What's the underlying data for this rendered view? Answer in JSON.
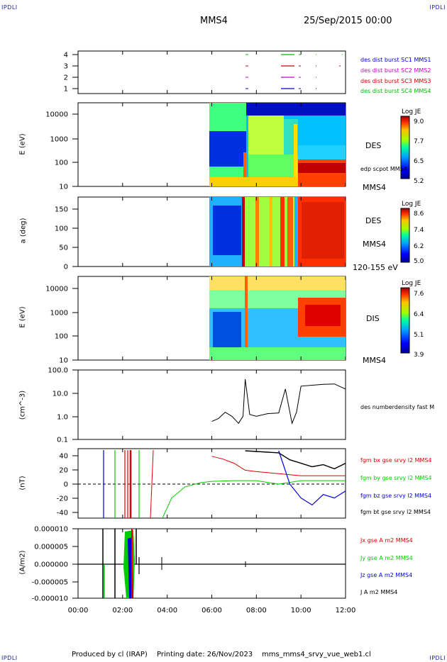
{
  "header": {
    "corner_tl": "IPDLI",
    "corner_tr": "IPDLI",
    "corner_bl": "IPDLI",
    "corner_br": "IPDLI",
    "spacecraft": "MMS4",
    "datetime": "25/Sep/2015 00:00"
  },
  "footer": {
    "produced": "Produced by cl (IRAP)",
    "printing": "Printing date: 26/Nov/2023",
    "file": "mms_mms4_srvy_vue_web1.cl"
  },
  "colors": {
    "mms1": "#0000cc",
    "mms2": "#cc00cc",
    "mms3": "#cc0000",
    "mms4": "#00bb00",
    "bx": "#dd0000",
    "by": "#00cc00",
    "bz": "#0000dd",
    "bt": "#000000"
  },
  "time_axis": [
    "00:00",
    "02:00",
    "04:00",
    "06:00",
    "08:00",
    "10:00",
    "12:00"
  ],
  "panels": {
    "burst": {
      "ticks": [
        "4",
        "3",
        "2",
        "1"
      ],
      "legend": [
        {
          "text": "des dist burst SC1 MMS1",
          "color": "#0000cc"
        },
        {
          "text": "des dist burst SC2 MMS2",
          "color": "#cc00cc"
        },
        {
          "text": "des dist burst SC3 MMS3",
          "color": "#cc0000"
        },
        {
          "text": "des dist burst SC4 MMS4",
          "color": "#00bb00"
        }
      ]
    },
    "des_energy": {
      "ylabel": "E (eV)",
      "ticks": [
        "10000",
        "1000",
        "100",
        "10"
      ],
      "label": "DES",
      "sub_label": "edp scpot MMS4",
      "bottom_label": "MMS4",
      "cbar_title": "Log JE",
      "cbar_ticks": [
        "9.0",
        "7.7",
        "6.5",
        "5.2"
      ]
    },
    "des_pitch": {
      "ylabel": "a (deg)",
      "ticks": [
        "150",
        "100",
        "50",
        "0"
      ],
      "label": "DES",
      "sub_label": "MMS4",
      "bottom_label": "120-155 eV",
      "cbar_title": "Log JE",
      "cbar_ticks": [
        "8.6",
        "7.4",
        "6.2",
        "5.0"
      ]
    },
    "dis_energy": {
      "ylabel": "E (eV)",
      "ticks": [
        "10000",
        "1000",
        "100",
        "10"
      ],
      "label": "DIS",
      "bottom_label": "MMS4",
      "cbar_title": "Log JE",
      "cbar_ticks": [
        "7.6",
        "6.4",
        "5.1",
        "3.9"
      ]
    },
    "density": {
      "ylabel": "(cm^-3)",
      "ticks": [
        "100.0",
        "10.0",
        "1.0",
        "0.1"
      ],
      "legend": "des numberdensity fast M"
    },
    "bfield": {
      "ylabel": "(nT)",
      "ticks": [
        "40",
        "20",
        "0",
        "-20",
        "-40"
      ],
      "legend": [
        {
          "text": "fgm bx gse srvy l2 MMS4",
          "color": "#dd0000"
        },
        {
          "text": "fgm by gse srvy l2 MMS4",
          "color": "#00cc00"
        },
        {
          "text": "fgm bz gse srvy l2 MMS4",
          "color": "#0000dd"
        },
        {
          "text": "fgm bt gse srvy l2 MMS4",
          "color": "#000000"
        }
      ]
    },
    "current": {
      "ylabel": "(A/m2)",
      "ticks": [
        "0.000010",
        "0.000005",
        "0.000000",
        "-0.000005",
        "-0.000010"
      ],
      "legend": [
        {
          "text": "Jx gse A m2 MMS4",
          "color": "#dd0000"
        },
        {
          "text": "Jy gse A m2 MMS4",
          "color": "#00cc00"
        },
        {
          "text": "Jz gse A m2 MMS4",
          "color": "#0000dd"
        },
        {
          "text": "J A m2 MMS4",
          "color": "#000000"
        }
      ]
    }
  },
  "chart_data": [
    {
      "type": "line",
      "series": [
        {
          "name": "des numberdensity fast M",
          "x": [
            6.0,
            6.3,
            6.6,
            6.9,
            7.2,
            7.4,
            7.5,
            7.7,
            8.0,
            8.5,
            9.0,
            9.3,
            9.6,
            9.8,
            10.0,
            10.5,
            11.0,
            11.5,
            12.0
          ],
          "values": [
            0.6,
            0.8,
            1.5,
            1.0,
            0.5,
            1.0,
            40.0,
            1.2,
            1.0,
            1.3,
            1.4,
            15.0,
            0.5,
            1.5,
            20.0,
            22.0,
            24.0,
            25.0,
            15.0
          ]
        }
      ],
      "xlim": [
        0,
        12
      ],
      "ylim": [
        0.1,
        100
      ],
      "yscale": "log"
    },
    {
      "type": "line",
      "series": [
        {
          "name": "fgm bx gse srvy l2 MMS4",
          "x": [
            6.0,
            6.5,
            7.0,
            7.5,
            8.0,
            9.0,
            10.0,
            11.0,
            12.0
          ],
          "values": [
            40,
            36,
            30,
            20,
            18,
            15,
            12,
            12,
            12
          ]
        },
        {
          "name": "fgm by gse srvy l2 MMS4",
          "x": [
            3.8,
            4.2,
            4.8,
            5.5,
            6.0,
            7.0,
            8.0,
            9.0,
            10.0,
            12.0
          ],
          "values": [
            -48,
            -20,
            -4,
            2,
            4,
            5,
            5,
            0,
            5,
            5
          ]
        },
        {
          "name": "fgm bz gse srvy l2 MMS4",
          "x": [
            9.0,
            9.5,
            10.0,
            10.5,
            11.0,
            11.5,
            12.0
          ],
          "values": [
            48,
            0,
            -20,
            -30,
            -15,
            -20,
            -10
          ]
        },
        {
          "name": "fgm bt gse srvy l2 MMS4",
          "x": [
            7.5,
            9.0,
            9.5,
            10.0,
            10.5,
            11.0,
            11.5,
            12.0
          ],
          "values": [
            48,
            45,
            35,
            30,
            25,
            28,
            22,
            30
          ]
        }
      ],
      "xlim": [
        0,
        12
      ],
      "ylim": [
        -50,
        50
      ]
    },
    {
      "type": "line",
      "series": [
        {
          "name": "J A m2 MMS4",
          "x": [
            0,
            1.2,
            2.0,
            2.2,
            2.5,
            2.8,
            3.6,
            7.5,
            12.0
          ],
          "values": [
            0,
            1e-05,
            1e-05,
            4e-06,
            1e-05,
            5e-06,
            1e-06,
            1e-06,
            0
          ]
        }
      ],
      "xlim": [
        0,
        12
      ],
      "ylim": [
        -1e-05,
        1e-05
      ]
    }
  ]
}
